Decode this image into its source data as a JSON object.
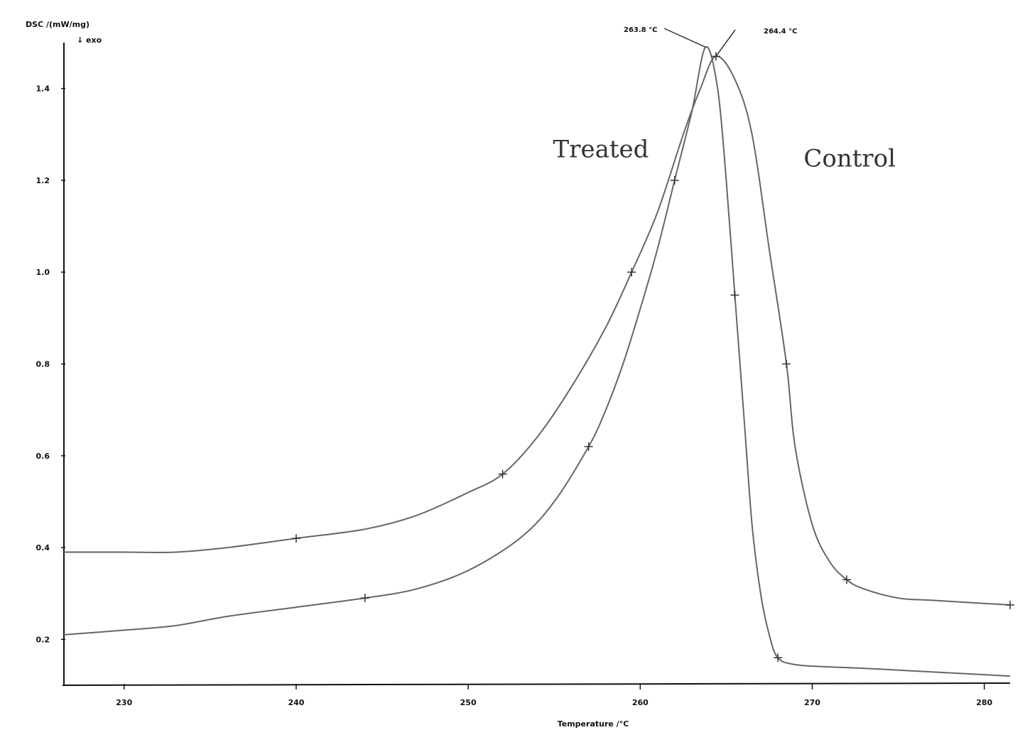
{
  "chart_data": {
    "type": "line",
    "ylabel": "DSC /(mW/mg)",
    "ylabel_line2": "↓ exo",
    "xlabel": "Temperature /°C",
    "xlim": [
      226.5,
      281.5
    ],
    "ylim": [
      0.1,
      1.5
    ],
    "xticks": [
      230,
      240,
      250,
      260,
      270,
      280
    ],
    "yticks": [
      0.2,
      0.4,
      0.6,
      0.8,
      1.0,
      1.2,
      1.4
    ],
    "ytick_labels": [
      "0.2",
      "0.4",
      "0.6",
      "0.8",
      "1.0",
      "1.2",
      "1.4"
    ],
    "annotations": [
      {
        "text": "263.8 °C",
        "x": 263.8,
        "y": 1.49
      },
      {
        "text": "264.4 °C",
        "x": 264.4,
        "y": 1.47
      }
    ],
    "series": [
      {
        "name": "Treated",
        "label_at": {
          "x": 260.5,
          "y": 1.25
        },
        "points": [
          [
            226.5,
            0.21
          ],
          [
            230,
            0.22
          ],
          [
            233,
            0.23
          ],
          [
            236,
            0.25
          ],
          [
            240,
            0.27
          ],
          [
            244,
            0.29
          ],
          [
            247,
            0.31
          ],
          [
            250,
            0.35
          ],
          [
            253,
            0.42
          ],
          [
            255,
            0.5
          ],
          [
            257,
            0.62
          ],
          [
            258,
            0.7
          ],
          [
            259,
            0.8
          ],
          [
            260,
            0.92
          ],
          [
            261,
            1.05
          ],
          [
            262,
            1.2
          ],
          [
            263,
            1.35
          ],
          [
            263.8,
            1.49
          ],
          [
            264.5,
            1.4
          ],
          [
            265,
            1.2
          ],
          [
            265.5,
            0.95
          ],
          [
            266,
            0.7
          ],
          [
            266.5,
            0.45
          ],
          [
            267,
            0.3
          ],
          [
            267.5,
            0.21
          ],
          [
            268,
            0.16
          ],
          [
            269,
            0.145
          ],
          [
            271,
            0.14
          ],
          [
            274,
            0.135
          ],
          [
            281.5,
            0.12
          ]
        ]
      },
      {
        "name": "Control",
        "label_at": {
          "x": 269.5,
          "y": 1.23
        },
        "points": [
          [
            226.5,
            0.39
          ],
          [
            230,
            0.39
          ],
          [
            233,
            0.39
          ],
          [
            236,
            0.4
          ],
          [
            240,
            0.42
          ],
          [
            244,
            0.44
          ],
          [
            247,
            0.47
          ],
          [
            250,
            0.52
          ],
          [
            252,
            0.56
          ],
          [
            254,
            0.64
          ],
          [
            256,
            0.75
          ],
          [
            258,
            0.88
          ],
          [
            259.5,
            1.0
          ],
          [
            261,
            1.13
          ],
          [
            262.5,
            1.3
          ],
          [
            263.5,
            1.4
          ],
          [
            264.4,
            1.47
          ],
          [
            265.5,
            1.42
          ],
          [
            266.5,
            1.3
          ],
          [
            267.5,
            1.05
          ],
          [
            268.5,
            0.8
          ],
          [
            269,
            0.62
          ],
          [
            270,
            0.45
          ],
          [
            271,
            0.37
          ],
          [
            272,
            0.33
          ],
          [
            273,
            0.31
          ],
          [
            275,
            0.29
          ],
          [
            277,
            0.285
          ],
          [
            281.5,
            0.275
          ]
        ]
      }
    ]
  }
}
